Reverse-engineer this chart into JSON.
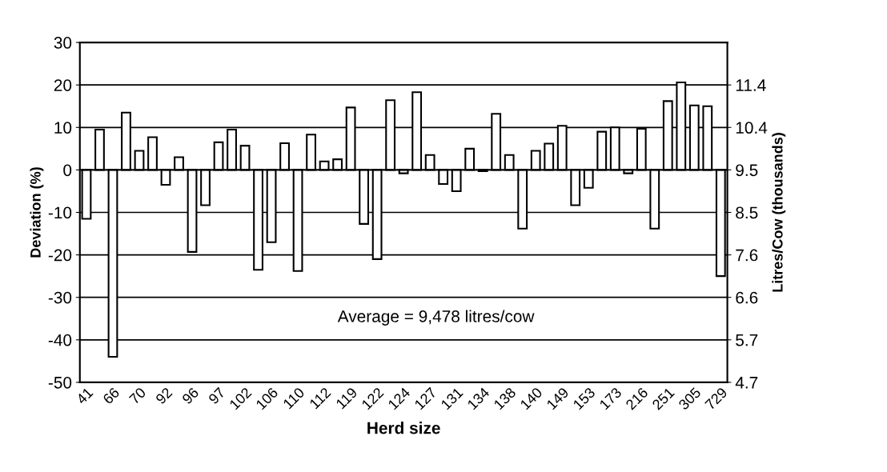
{
  "chart_data": {
    "type": "bar",
    "xlabel": "Herd size",
    "ylabel": "Deviation (%)",
    "y2label": "Litres/Cow (thousands)",
    "categories": [
      "41",
      null,
      "66",
      null,
      "70",
      null,
      "92",
      null,
      "96",
      null,
      "97",
      null,
      "102",
      null,
      "106",
      null,
      "110",
      null,
      "112",
      null,
      "119",
      null,
      "122",
      null,
      "124",
      null,
      "127",
      null,
      "131",
      null,
      "134",
      null,
      "138",
      null,
      "140",
      null,
      "149",
      null,
      "153",
      null,
      "173",
      null,
      "216",
      null,
      "251",
      null,
      "305",
      null,
      "729"
    ],
    "series": [
      {
        "color": "#ffffff",
        "values": [
          -11.5,
          9.5,
          -44,
          13.5,
          4.5,
          7.7,
          -3.5,
          3,
          -19.3,
          -8.3,
          6.5,
          9.5,
          5.7,
          -23.5,
          -17,
          6.3,
          -23.8,
          8.3,
          2,
          2.5,
          14.7,
          -12.7,
          -21,
          16.4,
          -0.8,
          18.3,
          3.5,
          -3.3,
          -5,
          5,
          -0.3,
          13.2,
          3.5,
          -13.8,
          4.5,
          6.2,
          10.4,
          -8.3,
          -4.2,
          9,
          10,
          -0.8,
          9.7,
          -13.8,
          16.2,
          20.6,
          15.2,
          15,
          -25
        ]
      }
    ],
    "ylim": [
      -50,
      30
    ],
    "yticks": [
      -50,
      -40,
      -30,
      -20,
      -10,
      0,
      10,
      20,
      30
    ],
    "y2lim": [
      4.739,
      12.321
    ],
    "y2ticks": [
      {
        "value": 4.739,
        "label": "4.7"
      },
      {
        "value": 5.687,
        "label": "5.7"
      },
      {
        "value": 6.635,
        "label": "6.6"
      },
      {
        "value": 7.582,
        "label": "7.6"
      },
      {
        "value": 8.53,
        "label": "8.5"
      },
      {
        "value": 9.478,
        "label": "9.5"
      },
      {
        "value": 10.426,
        "label": "10.4"
      },
      {
        "value": 11.374,
        "label": "11.4"
      }
    ],
    "annotations": [
      "Average = 9,478 litres/cow"
    ],
    "grid": "y",
    "legend": false
  }
}
